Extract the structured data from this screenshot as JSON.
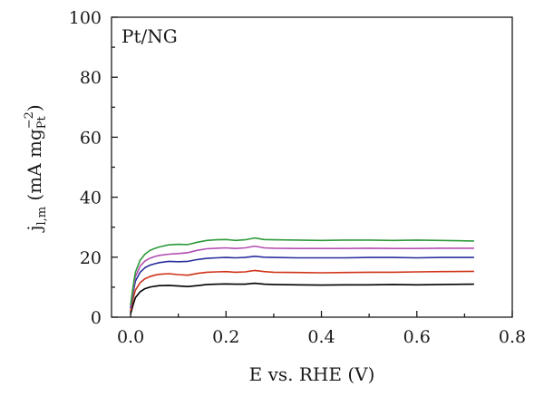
{
  "chart_data": {
    "type": "line",
    "annotation": "Pt/NG",
    "xlabel": "E vs. RHE (V)",
    "ylabel": {
      "main": "j",
      "sub": "l,m",
      "unit_open": " (mA mg",
      "unit_sub": "Pt",
      "unit_sup": "−2",
      "unit_close": ")"
    },
    "xlim": [
      -0.04,
      0.8
    ],
    "ylim": [
      0,
      100
    ],
    "x_ticks": [
      0.0,
      0.2,
      0.4,
      0.6,
      0.8
    ],
    "x_tick_labels": [
      "0.0",
      "0.2",
      "0.4",
      "0.6",
      "0.8"
    ],
    "y_ticks": [
      0,
      20,
      40,
      60,
      80,
      100
    ],
    "y_tick_labels": [
      "0",
      "20",
      "40",
      "60",
      "80",
      "100"
    ],
    "grid": false,
    "series": [
      {
        "color": "#000000",
        "x": [
          0.0,
          0.005,
          0.01,
          0.02,
          0.03,
          0.04,
          0.05,
          0.06,
          0.08,
          0.1,
          0.12,
          0.14,
          0.16,
          0.18,
          0.2,
          0.22,
          0.24,
          0.26,
          0.28,
          0.3,
          0.35,
          0.4,
          0.45,
          0.5,
          0.55,
          0.6,
          0.65,
          0.72
        ],
        "values": [
          1,
          4,
          6.5,
          8.5,
          9.5,
          10.0,
          10.3,
          10.5,
          10.6,
          10.4,
          10.2,
          10.5,
          10.9,
          11.0,
          11.1,
          11.0,
          11.0,
          11.3,
          11.0,
          10.9,
          10.8,
          10.7,
          10.8,
          10.8,
          10.9,
          10.8,
          10.9,
          11.0
        ]
      },
      {
        "color": "#d03318",
        "x": [
          0.0,
          0.005,
          0.01,
          0.02,
          0.03,
          0.04,
          0.05,
          0.06,
          0.08,
          0.1,
          0.12,
          0.14,
          0.16,
          0.18,
          0.2,
          0.22,
          0.24,
          0.26,
          0.28,
          0.3,
          0.35,
          0.4,
          0.45,
          0.5,
          0.55,
          0.6,
          0.65,
          0.72
        ],
        "values": [
          2,
          6,
          9,
          11.5,
          12.8,
          13.5,
          14.0,
          14.3,
          14.5,
          14.2,
          14.0,
          14.6,
          15.0,
          15.1,
          15.2,
          15.0,
          15.1,
          15.6,
          15.2,
          15.0,
          14.9,
          14.8,
          14.9,
          15.0,
          15.0,
          15.1,
          15.2,
          15.3
        ]
      },
      {
        "color": "#2a2f9c",
        "x": [
          0.0,
          0.005,
          0.01,
          0.02,
          0.03,
          0.04,
          0.05,
          0.06,
          0.08,
          0.1,
          0.12,
          0.14,
          0.16,
          0.18,
          0.2,
          0.22,
          0.24,
          0.26,
          0.28,
          0.3,
          0.35,
          0.4,
          0.45,
          0.5,
          0.55,
          0.6,
          0.65,
          0.72
        ],
        "values": [
          3,
          8,
          12,
          15.0,
          16.5,
          17.3,
          17.8,
          18.2,
          18.6,
          18.5,
          18.6,
          19.2,
          19.6,
          19.8,
          19.9,
          19.8,
          19.9,
          20.3,
          20.0,
          19.9,
          19.8,
          19.8,
          19.8,
          19.9,
          19.9,
          19.8,
          19.9,
          19.9
        ]
      },
      {
        "color": "#b34fb3",
        "x": [
          0.0,
          0.005,
          0.01,
          0.02,
          0.03,
          0.04,
          0.05,
          0.06,
          0.08,
          0.1,
          0.12,
          0.14,
          0.16,
          0.18,
          0.2,
          0.22,
          0.24,
          0.26,
          0.28,
          0.3,
          0.35,
          0.4,
          0.45,
          0.5,
          0.55,
          0.6,
          0.65,
          0.72
        ],
        "values": [
          3.5,
          9,
          13.5,
          17.0,
          18.7,
          19.6,
          20.2,
          20.6,
          21.0,
          21.2,
          21.5,
          22.3,
          22.8,
          23.0,
          23.1,
          22.9,
          23.1,
          23.7,
          23.1,
          23.0,
          22.9,
          22.9,
          22.9,
          23.0,
          22.9,
          22.9,
          23.0,
          23.0
        ]
      },
      {
        "color": "#2e9a3a",
        "x": [
          0.0,
          0.005,
          0.01,
          0.02,
          0.03,
          0.04,
          0.05,
          0.06,
          0.08,
          0.1,
          0.12,
          0.14,
          0.16,
          0.18,
          0.2,
          0.22,
          0.24,
          0.26,
          0.28,
          0.3,
          0.35,
          0.4,
          0.45,
          0.5,
          0.55,
          0.6,
          0.65,
          0.72
        ],
        "values": [
          4,
          10,
          15,
          19.0,
          21.0,
          22.2,
          22.9,
          23.4,
          24.1,
          24.3,
          24.2,
          25.0,
          25.6,
          25.8,
          25.9,
          25.6,
          25.8,
          26.4,
          25.9,
          25.8,
          25.7,
          25.6,
          25.7,
          25.7,
          25.6,
          25.7,
          25.6,
          25.4
        ]
      }
    ]
  }
}
